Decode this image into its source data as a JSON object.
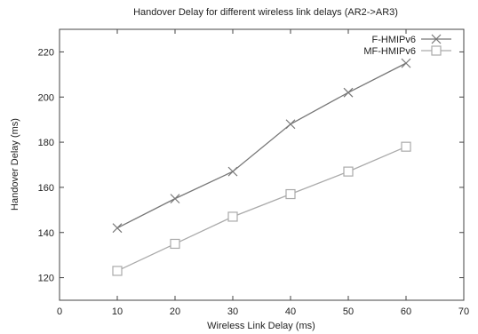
{
  "chart_data": {
    "type": "line",
    "title": "Handover Delay for different wireless link delays (AR2->AR3)",
    "xlabel": "Wireless Link Delay (ms)",
    "ylabel": "Handover Delay (ms)",
    "xlim": [
      0,
      70
    ],
    "ylim": [
      110,
      230
    ],
    "x_ticks": [
      0,
      10,
      20,
      30,
      40,
      50,
      60,
      70
    ],
    "y_ticks": [
      120,
      140,
      160,
      180,
      200,
      220
    ],
    "grid": false,
    "legend_position": "top-right",
    "series": [
      {
        "name": "F-HMIPv6",
        "marker": "x",
        "color": "#777777",
        "x": [
          10,
          20,
          30,
          40,
          50,
          60
        ],
        "y": [
          142,
          155,
          167,
          188,
          202,
          215
        ]
      },
      {
        "name": "MF-HMIPv6",
        "marker": "square",
        "color": "#aaaaaa",
        "x": [
          10,
          20,
          30,
          40,
          50,
          60
        ],
        "y": [
          123,
          135,
          147,
          157,
          167,
          178
        ]
      }
    ]
  }
}
